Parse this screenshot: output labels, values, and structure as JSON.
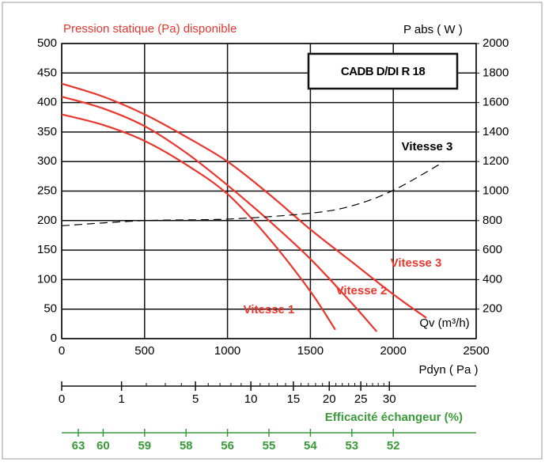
{
  "chart_data": {
    "type": "line",
    "title": "CADB D/DI R 18",
    "ylabel": "Pression statique (Pa) disponible",
    "y2label": "P abs ( W )",
    "xlabel": "Qv (m³/h)",
    "xlim": [
      0,
      2500
    ],
    "xticks": [
      0,
      500,
      1000,
      1500,
      2000,
      2500
    ],
    "ylim": [
      0,
      500
    ],
    "yticks": [
      0,
      50,
      100,
      150,
      200,
      250,
      300,
      350,
      400,
      450,
      500
    ],
    "y2lim": [
      0,
      2000
    ],
    "y2ticks": [
      200,
      400,
      600,
      800,
      1000,
      1200,
      1400,
      1600,
      1800,
      2000
    ],
    "grid": true,
    "series": [
      {
        "name": "Vitesse 1",
        "color": "#e8372d",
        "x": [
          0,
          250,
          500,
          750,
          1000,
          1250,
          1500,
          1650
        ],
        "values": [
          380,
          362,
          335,
          295,
          245,
          170,
          80,
          15
        ]
      },
      {
        "name": "Vitesse 2",
        "color": "#e8372d",
        "x": [
          0,
          250,
          500,
          750,
          1000,
          1250,
          1500,
          1750,
          1900
        ],
        "values": [
          410,
          390,
          360,
          315,
          260,
          200,
          135,
          60,
          12
        ]
      },
      {
        "name": "Vitesse 3",
        "color": "#e8372d",
        "x": [
          0,
          250,
          500,
          750,
          1000,
          1250,
          1500,
          1750,
          2000,
          2200
        ],
        "values": [
          432,
          410,
          380,
          342,
          300,
          245,
          185,
          130,
          75,
          35
        ]
      },
      {
        "name": "Vitesse 3",
        "color": "#000000",
        "axis": "y2",
        "dashed": true,
        "x": [
          0,
          500,
          1000,
          1500,
          1750,
          2000,
          2300
        ],
        "values": [
          765,
          800,
          810,
          850,
          900,
          1005,
          1195
        ]
      }
    ],
    "pdyn_axis": {
      "label": "Pdyn ( Pa )",
      "scale": "sqrt",
      "lim": [
        0,
        48
      ],
      "ticks": [
        0,
        1,
        5,
        10,
        15,
        20,
        25,
        30
      ],
      "minor_ticks": [
        2,
        3,
        4,
        6,
        7,
        8,
        9,
        11,
        12,
        13,
        14,
        16,
        17,
        18,
        19,
        21,
        22,
        23,
        24,
        26,
        27,
        28,
        29
      ]
    },
    "efficiency_axis": {
      "label": "Efficacité échangeur (%)",
      "color": "#3a9a3a",
      "ticks": [
        63,
        60,
        59,
        58,
        56,
        55,
        54,
        53,
        52
      ],
      "at_qv": [
        100,
        250,
        500,
        750,
        1000,
        1250,
        1500,
        1750,
        2000
      ]
    }
  }
}
